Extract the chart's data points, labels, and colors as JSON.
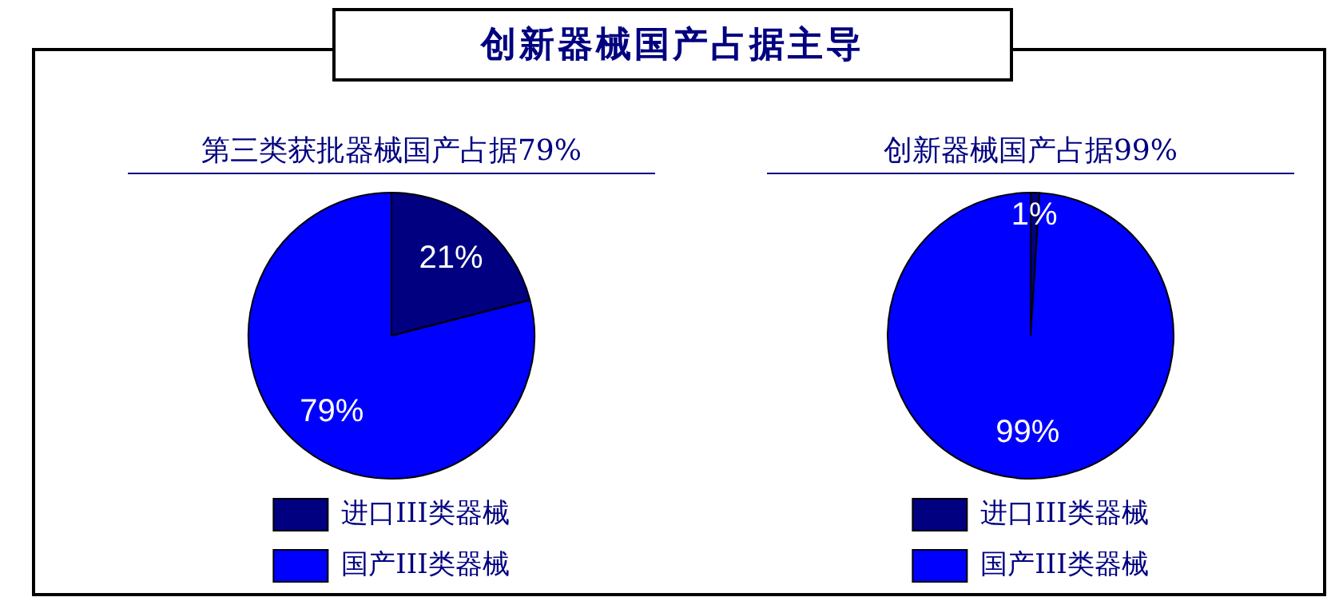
{
  "chart_data": [
    {
      "type": "other",
      "title": "创新器械国产占据主导"
    },
    {
      "type": "pie",
      "title": "第三类获批器械国产占据79%",
      "categories": [
        "进口III类器械",
        "国产III类器械"
      ],
      "values": [
        21,
        79
      ],
      "colors": [
        "#000080",
        "#0000ff"
      ],
      "value_labels": [
        "21%",
        "79%"
      ],
      "legend": "bottom"
    },
    {
      "type": "pie",
      "title": "创新器械国产占据99%",
      "categories": [
        "进口III类器械",
        "国产III类器械"
      ],
      "values": [
        1,
        99
      ],
      "colors": [
        "#000080",
        "#0000ff"
      ],
      "value_labels": [
        "1%",
        "99%"
      ],
      "legend": "bottom"
    }
  ]
}
